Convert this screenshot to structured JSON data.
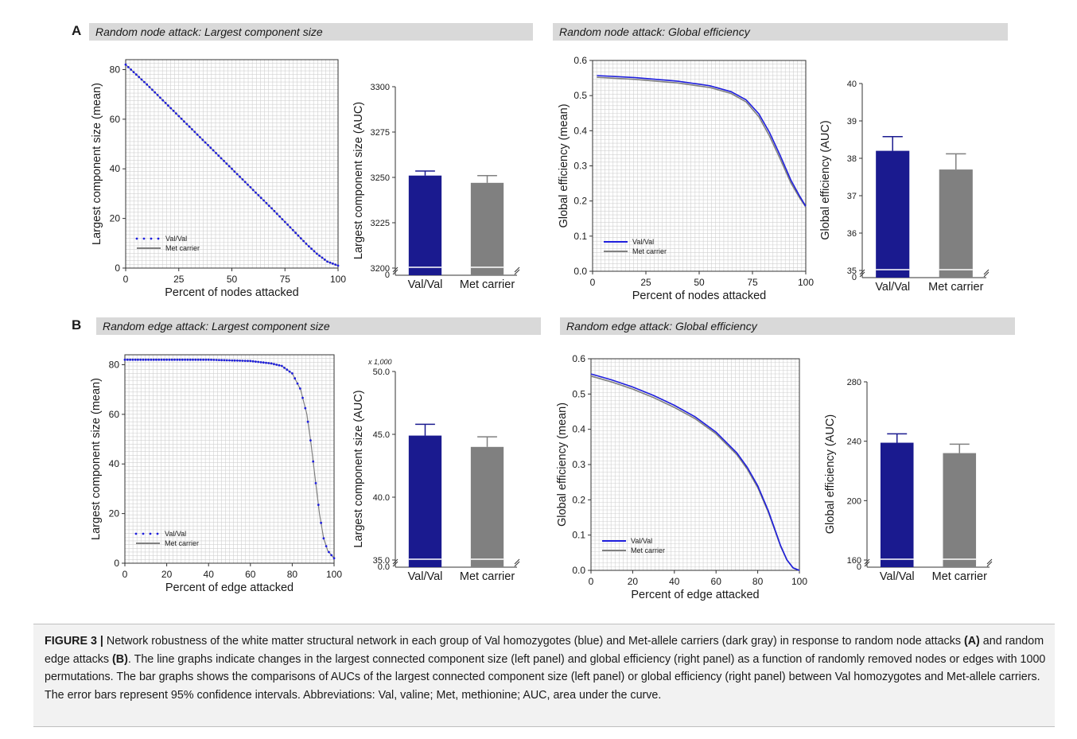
{
  "panels": {
    "A": {
      "letter": "A",
      "left_title": "Random node attack: Largest component size",
      "right_title": "Random node attack: Global efficiency"
    },
    "B": {
      "letter": "B",
      "left_title": "Random edge attack: Largest component size",
      "right_title": "Random edge attack: Global efficiency"
    }
  },
  "caption": {
    "label": "FIGURE 3 |",
    "part1": " Network robustness of the white matter structural network in each group of Val homozygotes (blue) and Met-allele carriers (dark gray) in response to random node attacks ",
    "ref_a": "(A)",
    "part2": " and random edge attacks ",
    "ref_b": "(B)",
    "part3": ". The line graphs indicate changes in the largest connected component size (left panel) and global efficiency (right panel) as a function of randomly removed nodes or edges with 1000 permutations. The bar graphs shows the comparisons of AUCs of the largest connected component size (left panel) or global efficiency (right panel) between Val homozygotes and Met-allele carriers. The error bars represent 95% confidence intervals. Abbreviations: Val, valine; Met, methionine; AUC, area under the curve."
  },
  "colors": {
    "val": "#1a1a8f",
    "val_line": "#1f1fdd",
    "met": "#808080",
    "grid": "#d0d0d0"
  },
  "chart_data": [
    {
      "id": "A-line-lcs",
      "type": "line",
      "xlabel": "Percent of nodes attacked",
      "ylabel": "Largest component size (mean)",
      "xlim": [
        0,
        100
      ],
      "ylim": [
        0,
        84
      ],
      "xticks": [
        0,
        25,
        50,
        75,
        100
      ],
      "yticks": [
        0,
        20,
        40,
        60,
        80
      ],
      "grid": true,
      "legend_position": "bottom-left",
      "series": [
        {
          "name": "Val/Val",
          "style": "dotted",
          "x": [
            0,
            10,
            20,
            30,
            40,
            50,
            60,
            70,
            80,
            85,
            90,
            95,
            100
          ],
          "y": [
            82,
            74,
            65.5,
            57,
            48.5,
            40,
            31.5,
            23,
            14.2,
            9.8,
            5.8,
            2.6,
            1
          ]
        },
        {
          "name": "Met carrier",
          "style": "solid",
          "x": [
            0,
            10,
            20,
            30,
            40,
            50,
            60,
            70,
            80,
            85,
            90,
            95,
            100
          ],
          "y": [
            82,
            74,
            65.5,
            57,
            48.5,
            40,
            31.5,
            23,
            14.2,
            9.8,
            5.8,
            2.6,
            1
          ]
        }
      ]
    },
    {
      "id": "A-bar-lcs",
      "type": "bar",
      "ylabel": "Largest component size (AUC)",
      "categories": [
        "Val/Val",
        "Met carrier"
      ],
      "values": [
        3251,
        3247
      ],
      "errors": [
        2.5,
        4
      ],
      "ylim": [
        3200,
        3300
      ],
      "yticks": [
        3200,
        3225,
        3250,
        3275,
        3300
      ],
      "axis_break_label": "0"
    },
    {
      "id": "A-line-ge",
      "type": "line",
      "xlabel": "Percent of nodes attacked",
      "ylabel": "Global efficiency (mean)",
      "xlim": [
        0,
        100
      ],
      "ylim": [
        0,
        0.6
      ],
      "xticks": [
        0,
        25,
        50,
        75,
        100
      ],
      "yticks": [
        "0.0",
        "0.1",
        "0.2",
        "0.3",
        "0.4",
        "0.5",
        "0.6"
      ],
      "grid": true,
      "legend_position": "bottom-left",
      "series": [
        {
          "name": "Val/Val",
          "x": [
            2,
            20,
            40,
            55,
            65,
            72,
            78,
            83,
            88,
            93,
            97,
            100
          ],
          "y": [
            0.557,
            0.551,
            0.541,
            0.528,
            0.511,
            0.488,
            0.448,
            0.395,
            0.33,
            0.26,
            0.215,
            0.185
          ]
        },
        {
          "name": "Met carrier",
          "x": [
            2,
            20,
            40,
            55,
            65,
            72,
            78,
            83,
            88,
            93,
            97,
            100
          ],
          "y": [
            0.552,
            0.546,
            0.536,
            0.523,
            0.506,
            0.482,
            0.44,
            0.385,
            0.32,
            0.252,
            0.21,
            0.183
          ]
        }
      ]
    },
    {
      "id": "A-bar-ge",
      "type": "bar",
      "ylabel": "Global efficiency (AUC)",
      "categories": [
        "Val/Val",
        "Met carrier"
      ],
      "values": [
        38.2,
        37.7
      ],
      "errors": [
        0.38,
        0.42
      ],
      "ylim": [
        35,
        40
      ],
      "yticks": [
        35,
        36,
        37,
        38,
        39,
        40
      ],
      "axis_break_label": "0"
    },
    {
      "id": "B-line-lcs",
      "type": "line",
      "xlabel": "Percent of edge attacked",
      "ylabel": "Largest component size (mean)",
      "xlim": [
        0,
        100
      ],
      "ylim": [
        0,
        84
      ],
      "xticks": [
        0,
        20,
        40,
        60,
        80,
        100
      ],
      "yticks": [
        0,
        20,
        40,
        60,
        80
      ],
      "grid": true,
      "legend_position": "bottom-left",
      "series": [
        {
          "name": "Val/Val",
          "style": "dotted",
          "x": [
            0,
            20,
            40,
            60,
            70,
            75,
            80,
            84,
            87,
            89,
            91,
            93,
            95,
            97,
            100
          ],
          "y": [
            82,
            82,
            82,
            81.5,
            80.5,
            79.5,
            76.5,
            70,
            60,
            48,
            34,
            20,
            10,
            5,
            2
          ]
        },
        {
          "name": "Met carrier",
          "style": "solid",
          "x": [
            0,
            20,
            40,
            60,
            70,
            75,
            80,
            84,
            87,
            89,
            91,
            93,
            95,
            97,
            100
          ],
          "y": [
            82,
            82,
            82,
            81.5,
            80.5,
            79.5,
            76.5,
            70,
            60,
            48,
            34,
            20,
            10,
            5,
            2
          ]
        }
      ]
    },
    {
      "id": "B-bar-lcs",
      "type": "bar",
      "ylabel": "Largest component size (AUC)",
      "unit_note": "x 1,000",
      "categories": [
        "Val/Val",
        "Met carrier"
      ],
      "values": [
        44.9,
        44.0
      ],
      "errors": [
        0.9,
        0.8
      ],
      "ylim": [
        35,
        50
      ],
      "yticks": [
        "35.0",
        "40.0",
        "45.0",
        "50.0"
      ],
      "axis_break_label": "0.0"
    },
    {
      "id": "B-line-ge",
      "type": "line",
      "xlabel": "Percent of edge attacked",
      "ylabel": "Global efficiency (mean)",
      "xlim": [
        0,
        100
      ],
      "ylim": [
        0,
        0.6
      ],
      "xticks": [
        0,
        20,
        40,
        60,
        80,
        100
      ],
      "yticks": [
        "0.0",
        "0.1",
        "0.2",
        "0.3",
        "0.4",
        "0.5",
        "0.6"
      ],
      "grid": true,
      "legend_position": "bottom-left",
      "series": [
        {
          "name": "Val/Val",
          "x": [
            0,
            10,
            20,
            30,
            40,
            50,
            60,
            70,
            75,
            80,
            85,
            88,
            91,
            94,
            97,
            100
          ],
          "y": [
            0.557,
            0.54,
            0.52,
            0.496,
            0.468,
            0.435,
            0.392,
            0.333,
            0.292,
            0.24,
            0.17,
            0.12,
            0.07,
            0.03,
            0.007,
            0.0
          ]
        },
        {
          "name": "Met carrier",
          "x": [
            0,
            10,
            20,
            30,
            40,
            50,
            60,
            70,
            75,
            80,
            85,
            88,
            91,
            94,
            97,
            100
          ],
          "y": [
            0.551,
            0.534,
            0.514,
            0.49,
            0.462,
            0.43,
            0.387,
            0.328,
            0.287,
            0.235,
            0.166,
            0.117,
            0.068,
            0.029,
            0.007,
            0.0
          ]
        }
      ]
    },
    {
      "id": "B-bar-ge",
      "type": "bar",
      "ylabel": "Global efficiency (AUC)",
      "categories": [
        "Val/Val",
        "Met carrier"
      ],
      "values": [
        239,
        232
      ],
      "errors": [
        6,
        6
      ],
      "ylim": [
        160,
        280
      ],
      "yticks": [
        160,
        200,
        240,
        280
      ],
      "axis_break_label": "0"
    }
  ]
}
